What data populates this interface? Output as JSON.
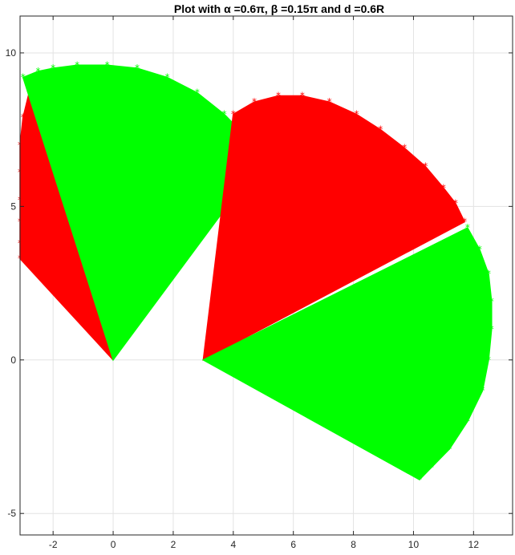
{
  "chart_data": {
    "type": "scatter",
    "title": "Plot with α =0.6π, β =0.15π and d =0.6R",
    "xlim": [
      -3.1,
      13.3
    ],
    "ylim": [
      -5.7,
      11.2
    ],
    "xticks": [
      -2,
      0,
      2,
      4,
      6,
      8,
      10,
      12
    ],
    "yticks": [
      -5,
      0,
      5,
      10
    ],
    "xtick_labels": [
      "-2",
      "0",
      "2",
      "4",
      "6",
      "8",
      "10",
      "12"
    ],
    "ytick_labels": [
      "-5",
      "0",
      "5",
      "10"
    ],
    "grid": true,
    "marker": "*",
    "series": [
      {
        "color": "#ff0000",
        "description": "left red fan",
        "pivot": [
          0,
          0
        ],
        "apex": [
          0,
          0
        ],
        "points": [
          [
            -3.1,
            3.3
          ],
          [
            -3.1,
            3.8
          ],
          [
            -3.1,
            4.5
          ],
          [
            -3.1,
            5.2
          ],
          [
            -3.1,
            6.1
          ],
          [
            -3.1,
            7.0
          ],
          [
            -3.0,
            7.9
          ],
          [
            -2.8,
            8.7
          ]
        ]
      },
      {
        "color": "#00ff00",
        "description": "left green fan",
        "apex": [
          0,
          0
        ],
        "points": [
          [
            -3.0,
            9.2
          ],
          [
            -2.5,
            9.4
          ],
          [
            -2.0,
            9.5
          ],
          [
            -1.2,
            9.6
          ],
          [
            -0.2,
            9.6
          ],
          [
            0.8,
            9.5
          ],
          [
            1.8,
            9.2
          ],
          [
            2.8,
            8.7
          ],
          [
            3.7,
            8.0
          ],
          [
            4.5,
            7.2
          ],
          [
            5.0,
            6.6
          ]
        ]
      },
      {
        "color": "#ff0000",
        "description": "right red fan",
        "apex": [
          3,
          0
        ],
        "points": [
          [
            4.0,
            8.0
          ],
          [
            4.7,
            8.4
          ],
          [
            5.5,
            8.6
          ],
          [
            6.3,
            8.6
          ],
          [
            7.2,
            8.4
          ],
          [
            8.1,
            8.0
          ],
          [
            8.9,
            7.5
          ],
          [
            9.7,
            6.9
          ],
          [
            10.4,
            6.3
          ],
          [
            11.0,
            5.6
          ],
          [
            11.4,
            5.1
          ],
          [
            11.7,
            4.5
          ]
        ]
      },
      {
        "color": "#00ff00",
        "description": "right green fan",
        "apex": [
          3,
          0
        ],
        "points": [
          [
            11.8,
            4.3
          ],
          [
            12.2,
            3.6
          ],
          [
            12.5,
            2.8
          ],
          [
            12.6,
            1.9
          ],
          [
            12.6,
            1.0
          ],
          [
            12.5,
            0.0
          ],
          [
            12.3,
            -1.0
          ],
          [
            11.8,
            -2.0
          ],
          [
            11.2,
            -2.9
          ],
          [
            10.6,
            -3.5
          ],
          [
            10.2,
            -3.9
          ]
        ]
      }
    ]
  }
}
